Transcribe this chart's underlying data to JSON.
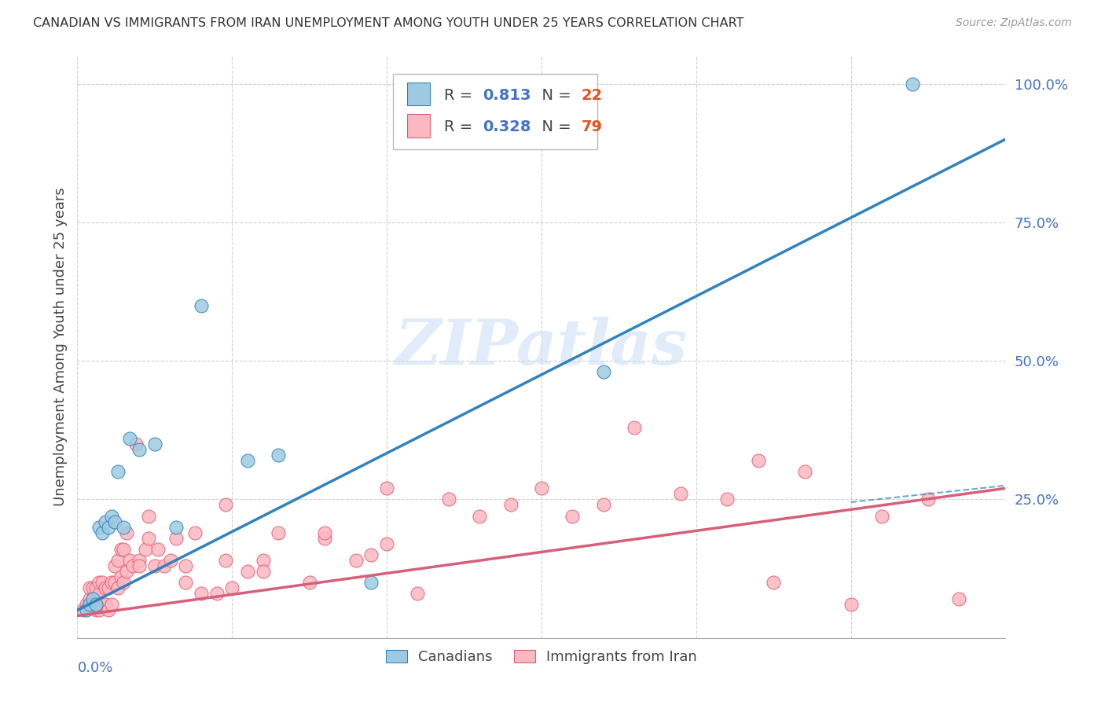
{
  "title": "CANADIAN VS IMMIGRANTS FROM IRAN UNEMPLOYMENT AMONG YOUTH UNDER 25 YEARS CORRELATION CHART",
  "source": "Source: ZipAtlas.com",
  "ylabel": "Unemployment Among Youth under 25 years",
  "legend_canadian_R": "0.813",
  "legend_canadian_N": "22",
  "legend_iran_R": "0.328",
  "legend_iran_N": "79",
  "xlim": [
    0.0,
    0.3
  ],
  "ylim": [
    0.0,
    1.05
  ],
  "canadian_color": "#9ecae1",
  "iran_color": "#fcb8c0",
  "canadian_line_color": "#3182bd",
  "iran_line_color": "#d6607a",
  "watermark": "ZIPatlas",
  "canadian_line_x0": 0.0,
  "canadian_line_y0": 0.05,
  "canadian_line_x1": 0.3,
  "canadian_line_y1": 0.9,
  "iran_line_x0": 0.0,
  "iran_line_y0": 0.04,
  "iran_line_x1": 0.3,
  "iran_line_y1": 0.27,
  "dashed_line_x0": 0.25,
  "dashed_line_y0": 0.245,
  "dashed_line_x1": 0.3,
  "dashed_line_y1": 0.275,
  "canadian_dots_x": [
    0.003,
    0.004,
    0.005,
    0.006,
    0.007,
    0.008,
    0.009,
    0.01,
    0.011,
    0.012,
    0.013,
    0.015,
    0.017,
    0.02,
    0.025,
    0.032,
    0.04,
    0.055,
    0.065,
    0.095,
    0.17,
    0.27
  ],
  "canadian_dots_y": [
    0.05,
    0.06,
    0.07,
    0.06,
    0.2,
    0.19,
    0.21,
    0.2,
    0.22,
    0.21,
    0.3,
    0.2,
    0.36,
    0.34,
    0.35,
    0.2,
    0.6,
    0.32,
    0.33,
    0.1,
    0.48,
    1.0
  ],
  "iran_dots_x": [
    0.002,
    0.003,
    0.004,
    0.004,
    0.005,
    0.005,
    0.006,
    0.006,
    0.006,
    0.007,
    0.007,
    0.007,
    0.008,
    0.008,
    0.009,
    0.009,
    0.01,
    0.01,
    0.011,
    0.011,
    0.012,
    0.012,
    0.013,
    0.013,
    0.014,
    0.014,
    0.015,
    0.015,
    0.016,
    0.016,
    0.017,
    0.018,
    0.019,
    0.02,
    0.02,
    0.022,
    0.023,
    0.025,
    0.026,
    0.028,
    0.03,
    0.032,
    0.035,
    0.038,
    0.04,
    0.045,
    0.048,
    0.05,
    0.055,
    0.06,
    0.065,
    0.075,
    0.08,
    0.09,
    0.095,
    0.1,
    0.11,
    0.12,
    0.13,
    0.14,
    0.15,
    0.16,
    0.17,
    0.18,
    0.195,
    0.21,
    0.225,
    0.235,
    0.25,
    0.26,
    0.275,
    0.285,
    0.023,
    0.035,
    0.048,
    0.06,
    0.08,
    0.1,
    0.22
  ],
  "iran_dots_y": [
    0.05,
    0.06,
    0.07,
    0.09,
    0.06,
    0.09,
    0.05,
    0.07,
    0.09,
    0.05,
    0.08,
    0.1,
    0.06,
    0.1,
    0.06,
    0.09,
    0.05,
    0.09,
    0.06,
    0.1,
    0.1,
    0.13,
    0.09,
    0.14,
    0.11,
    0.16,
    0.1,
    0.16,
    0.12,
    0.19,
    0.14,
    0.13,
    0.35,
    0.14,
    0.13,
    0.16,
    0.18,
    0.13,
    0.16,
    0.13,
    0.14,
    0.18,
    0.1,
    0.19,
    0.08,
    0.08,
    0.14,
    0.09,
    0.12,
    0.14,
    0.19,
    0.1,
    0.18,
    0.14,
    0.15,
    0.17,
    0.08,
    0.25,
    0.22,
    0.24,
    0.27,
    0.22,
    0.24,
    0.38,
    0.26,
    0.25,
    0.1,
    0.3,
    0.06,
    0.22,
    0.25,
    0.07,
    0.22,
    0.13,
    0.24,
    0.12,
    0.19,
    0.27,
    0.32
  ]
}
